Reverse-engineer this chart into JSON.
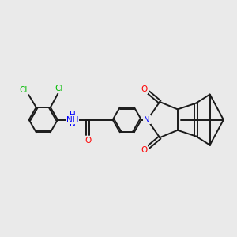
{
  "background_color": "#EAEAEA",
  "bond_color": "#1a1a1a",
  "fig_width": 3.0,
  "fig_height": 3.0,
  "dpi": 100,
  "lw": 1.4,
  "label_fontsize": 7.5,
  "colors": {
    "C": "#1a1a1a",
    "N": "#0000FF",
    "O": "#FF0000",
    "Cl": "#00BB00",
    "H": "#0000FF"
  }
}
